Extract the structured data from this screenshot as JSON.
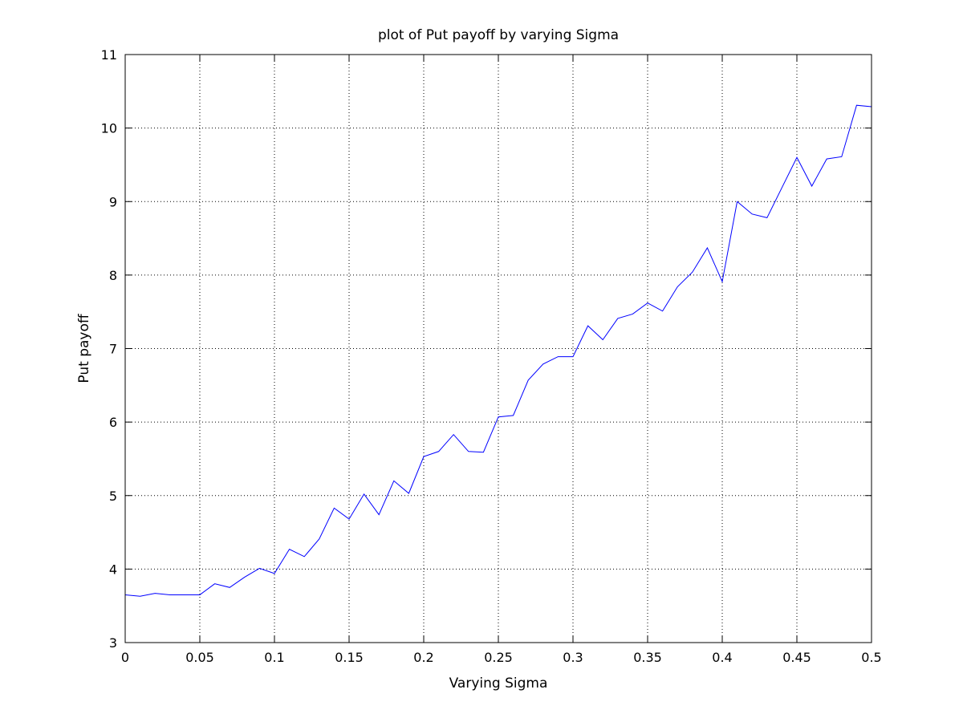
{
  "chart_data": {
    "type": "line",
    "title": "plot of Put payoff by varying Sigma",
    "xlabel": "Varying Sigma",
    "ylabel": "Put payoff",
    "xlim": [
      0,
      0.5
    ],
    "ylim": [
      3,
      11
    ],
    "xticks": [
      "0",
      "0.05",
      "0.1",
      "0.15",
      "0.2",
      "0.25",
      "0.3",
      "0.35",
      "0.4",
      "0.45",
      "0.5"
    ],
    "yticks": [
      "3",
      "4",
      "5",
      "6",
      "7",
      "8",
      "9",
      "10",
      "11"
    ],
    "grid": true,
    "grid_style": "dotted",
    "series_color": "#0000ff",
    "series": [
      {
        "x": [
          0,
          0.01,
          0.02,
          0.03,
          0.04,
          0.05,
          0.06,
          0.07,
          0.08,
          0.09,
          0.1,
          0.11,
          0.12,
          0.13,
          0.14,
          0.15,
          0.16,
          0.17,
          0.18,
          0.19,
          0.2,
          0.21,
          0.22,
          0.23,
          0.24,
          0.25,
          0.26,
          0.27,
          0.28,
          0.29,
          0.3,
          0.31,
          0.32,
          0.33,
          0.34,
          0.35,
          0.36,
          0.37,
          0.38,
          0.39,
          0.4,
          0.41,
          0.42,
          0.43,
          0.44,
          0.45,
          0.46,
          0.47,
          0.48,
          0.49,
          0.5
        ],
        "values": [
          3.65,
          3.63,
          3.67,
          3.65,
          3.65,
          3.65,
          3.8,
          3.75,
          3.89,
          4.01,
          3.94,
          4.27,
          4.17,
          4.41,
          4.83,
          4.68,
          5.02,
          4.74,
          5.2,
          5.03,
          5.53,
          5.6,
          5.83,
          5.6,
          5.59,
          6.07,
          6.09,
          6.57,
          6.79,
          6.89,
          6.89,
          7.31,
          7.12,
          7.41,
          7.47,
          7.62,
          7.51,
          7.84,
          8.04,
          8.37,
          7.91,
          9.0,
          8.83,
          8.78,
          9.19,
          9.6,
          9.21,
          9.58,
          9.61,
          10.31,
          10.29
        ]
      }
    ]
  }
}
